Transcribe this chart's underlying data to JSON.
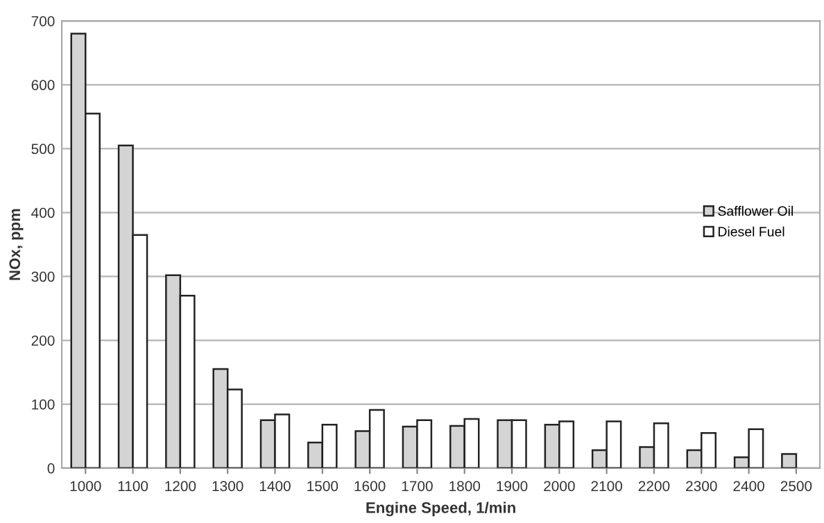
{
  "chart_data": {
    "type": "bar",
    "xlabel": "Engine Speed, 1/min",
    "ylabel": "NOx, ppm",
    "categories": [
      "1000",
      "1100",
      "1200",
      "1300",
      "1400",
      "1500",
      "1600",
      "1700",
      "1800",
      "1900",
      "2000",
      "2100",
      "2200",
      "2300",
      "2400",
      "2500"
    ],
    "series": [
      {
        "name": "Safflower Oil",
        "color": "#d4d4d4",
        "values": [
          680,
          505,
          302,
          155,
          75,
          40,
          58,
          65,
          66,
          75,
          68,
          28,
          33,
          28,
          17,
          22
        ]
      },
      {
        "name": "Diesel Fuel",
        "color": "#ffffff",
        "values": [
          555,
          365,
          270,
          123,
          84,
          68,
          91,
          75,
          77,
          75,
          73,
          73,
          70,
          55,
          61,
          null
        ]
      }
    ],
    "ylim": [
      0,
      700
    ],
    "yticks": [
      0,
      100,
      200,
      300,
      400,
      500,
      600,
      700
    ],
    "grid": "y",
    "legend": "right"
  }
}
